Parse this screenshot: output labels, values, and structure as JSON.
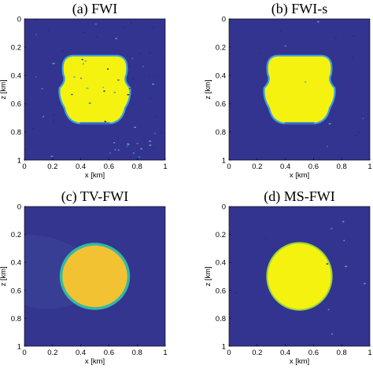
{
  "chart_data": [
    {
      "type": "heatmap",
      "title": "(a) FWI",
      "xlabel": "x [km]",
      "ylabel": "z [km]",
      "xlim": [
        0,
        1
      ],
      "ylim": [
        0,
        1
      ],
      "y_reversed": true,
      "xticks": [
        "0",
        "0.2",
        "0.4",
        "0.6",
        "0.8",
        "1"
      ],
      "yticks": [
        "0",
        "0.2",
        "0.4",
        "0.6",
        "0.8",
        "1"
      ],
      "background_color": "#33348f",
      "anomaly": {
        "shape": "rounded blob with side notches",
        "center_x": 0.5,
        "center_z": 0.5,
        "half_width": 0.25,
        "half_height": 0.24,
        "fill_color": "#f5f20f",
        "edge_color": "#3aa0e0"
      },
      "artifacts": "scattered noise pixels"
    },
    {
      "type": "heatmap",
      "title": "(b) FWI-s",
      "xlabel": "x [km]",
      "ylabel": "z [km]",
      "xlim": [
        0,
        1
      ],
      "ylim": [
        0,
        1
      ],
      "y_reversed": true,
      "xticks": [
        "0",
        "0.2",
        "0.4",
        "0.6",
        "0.8",
        "1"
      ],
      "yticks": [
        "0",
        "0.2",
        "0.4",
        "0.6",
        "0.8",
        "1"
      ],
      "background_color": "#33348f",
      "anomaly": {
        "shape": "rounded blob with side notches",
        "center_x": 0.5,
        "center_z": 0.5,
        "half_width": 0.25,
        "half_height": 0.24,
        "fill_color": "#f5f20f",
        "edge_color": "#3aa0e0"
      },
      "artifacts": "few noise pixels"
    },
    {
      "type": "heatmap",
      "title": "(c) TV-FWI",
      "xlabel": "x [km]",
      "ylabel": "z [km]",
      "xlim": [
        0,
        1
      ],
      "ylim": [
        0,
        1
      ],
      "y_reversed": true,
      "xticks": [
        "0",
        "0.2",
        "0.4",
        "0.6",
        "0.8",
        "1"
      ],
      "yticks": [
        "0",
        "0.2",
        "0.4",
        "0.6",
        "0.8",
        "1"
      ],
      "background_color": "#34358f",
      "anomaly": {
        "shape": "ellipse",
        "center_x": 0.5,
        "center_z": 0.5,
        "half_width": 0.24,
        "half_height": 0.23,
        "fill_color": "#f2c232",
        "edge_color": "#34b8a4"
      },
      "artifacts": "faint shadow zone on the left"
    },
    {
      "type": "heatmap",
      "title": "(d) MS-FWI",
      "xlabel": "x [km]",
      "ylabel": "z [km]",
      "xlim": [
        0,
        1
      ],
      "ylim": [
        0,
        1
      ],
      "y_reversed": true,
      "xticks": [
        "0",
        "0.2",
        "0.4",
        "0.6",
        "0.8",
        "1"
      ],
      "yticks": [
        "0",
        "0.2",
        "0.4",
        "0.6",
        "0.8",
        "1"
      ],
      "background_color": "#33348f",
      "anomaly": {
        "shape": "circle",
        "center_x": 0.5,
        "center_z": 0.5,
        "half_width": 0.23,
        "half_height": 0.24,
        "fill_color": "#f5f20f",
        "edge_color": "#8fd24a"
      },
      "artifacts": "sparse noise pixels"
    }
  ]
}
